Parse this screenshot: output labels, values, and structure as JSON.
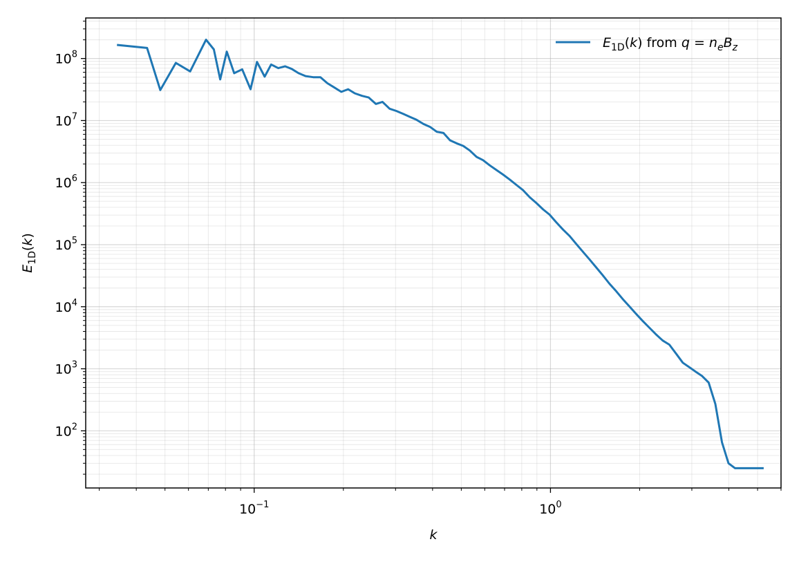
{
  "chart_data": {
    "type": "line",
    "xscale": "log",
    "yscale": "log",
    "xlim": [
      0.027,
      6.0
    ],
    "ylim": [
      12,
      450000000
    ],
    "grid": "major and minor on both axes",
    "xlabel": "k",
    "ylabel": "E_1D(k)",
    "x_ticks": [
      {
        "value": 0.1,
        "base": "10",
        "exp": "−1"
      },
      {
        "value": 1.0,
        "base": "10",
        "exp": "0"
      }
    ],
    "y_ticks": [
      {
        "value": 100,
        "base": "10",
        "exp": "2"
      },
      {
        "value": 1000,
        "base": "10",
        "exp": "3"
      },
      {
        "value": 10000,
        "base": "10",
        "exp": "4"
      },
      {
        "value": 100000,
        "base": "10",
        "exp": "5"
      },
      {
        "value": 1000000,
        "base": "10",
        "exp": "6"
      },
      {
        "value": 10000000,
        "base": "10",
        "exp": "7"
      },
      {
        "value": 100000000,
        "base": "10",
        "exp": "8"
      }
    ],
    "legend": {
      "placement": "top-right",
      "label": "E_1D(k) from q = n_e B_z"
    },
    "series": [
      {
        "name": "E_1D(k) from q = n_e B_z",
        "color": "#1f77b4",
        "x": [
          0.0347,
          0.0435,
          0.0482,
          0.0544,
          0.0608,
          0.0688,
          0.0731,
          0.0768,
          0.0808,
          0.0856,
          0.0911,
          0.0972,
          0.1022,
          0.1085,
          0.1141,
          0.1206,
          0.1271,
          0.1338,
          0.1412,
          0.1492,
          0.1582,
          0.1673,
          0.1766,
          0.1866,
          0.1968,
          0.2075,
          0.2185,
          0.2313,
          0.2436,
          0.2574,
          0.2711,
          0.2865,
          0.3017,
          0.3185,
          0.335,
          0.3531,
          0.3727,
          0.3923,
          0.413,
          0.4353,
          0.458,
          0.4818,
          0.5076,
          0.5339,
          0.5631,
          0.5919,
          0.6237,
          0.6567,
          0.6913,
          0.7286,
          0.7674,
          0.8071,
          0.8511,
          0.8956,
          0.9443,
          0.993,
          1.0453,
          1.1028,
          1.1601,
          1.2211,
          1.2864,
          1.3538,
          1.4269,
          1.5025,
          1.5816,
          1.6662,
          1.7531,
          1.8471,
          1.9446,
          2.0474,
          2.1558,
          2.2683,
          2.3919,
          2.5189,
          2.6545,
          2.7963,
          2.9497,
          3.0766,
          3.242,
          3.4185,
          3.6012,
          3.7933,
          3.9891,
          4.1975,
          4.3795,
          4.5686,
          4.7645,
          4.9716,
          5.2
        ],
        "y": [
          165000000,
          148000000,
          31000000,
          85000000,
          62000000,
          201000000,
          140000000,
          46000000,
          129000000,
          58000000,
          67000000,
          32000000,
          88000000,
          51000000,
          80000000,
          70000000,
          75000000,
          68000000,
          58000000,
          52000000,
          50000000,
          50000000,
          40000000,
          34000000,
          29000000,
          32000000,
          27500000,
          25000000,
          23500000,
          18500000,
          20000000,
          15500000,
          14300000,
          12800000,
          11500000,
          10300000,
          8800000,
          7900000,
          6600000,
          6300000,
          4800000,
          4300000,
          3900000,
          3300000,
          2600000,
          2300000,
          1900000,
          1600000,
          1350000,
          1120000,
          920000,
          760000,
          580000,
          470000,
          370000,
          305000,
          230000,
          175000,
          138000,
          103000,
          77000,
          58000,
          43000,
          32000,
          23500,
          17800,
          13300,
          10100,
          7700,
          5900,
          4600,
          3600,
          2850,
          2450,
          1750,
          1250,
          1050,
          910,
          770,
          600,
          270,
          65,
          30,
          25,
          25,
          25,
          25,
          25,
          25
        ]
      }
    ]
  }
}
